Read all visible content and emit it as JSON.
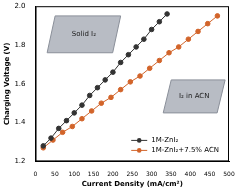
{
  "chart_data": {
    "type": "line",
    "x_label": "Current Density (mA/cm²)",
    "y_label": "Charging Voltage (V)",
    "xlim": [
      0,
      500
    ],
    "xticks": [
      0,
      50,
      100,
      150,
      200,
      250,
      300,
      350,
      400,
      450,
      500
    ],
    "ylim": [
      1.2,
      2.0
    ],
    "yticks": [
      1.2,
      1.4,
      1.6,
      1.8,
      {
        "value": 2.0,
        "label": "2.0"
      }
    ],
    "grid": false,
    "legend": "lower right",
    "marker": "circle",
    "annotations": [
      {
        "text": "Solid I₂"
      },
      {
        "text": "I₂ in ACN"
      }
    ],
    "series": [
      {
        "name": "1M-ZnI₂",
        "color": "#333333",
        "x": [
          20,
          40,
          60,
          80,
          100,
          120,
          140,
          160,
          180,
          200,
          220,
          240,
          260,
          280,
          300,
          320,
          340
        ],
        "values": [
          1.28,
          1.32,
          1.37,
          1.41,
          1.45,
          1.49,
          1.54,
          1.58,
          1.62,
          1.66,
          1.71,
          1.75,
          1.79,
          1.83,
          1.88,
          1.92,
          1.96
        ]
      },
      {
        "name": "1M-ZnI₂+7.5% ACN",
        "color": "#d2642a",
        "x": [
          20,
          45,
          70,
          95,
          120,
          145,
          170,
          195,
          220,
          245,
          270,
          295,
          320,
          345,
          370,
          395,
          420,
          445,
          470
        ],
        "values": [
          1.27,
          1.31,
          1.35,
          1.38,
          1.42,
          1.46,
          1.5,
          1.53,
          1.57,
          1.61,
          1.64,
          1.68,
          1.72,
          1.76,
          1.79,
          1.83,
          1.87,
          1.91,
          1.95
        ]
      }
    ]
  }
}
